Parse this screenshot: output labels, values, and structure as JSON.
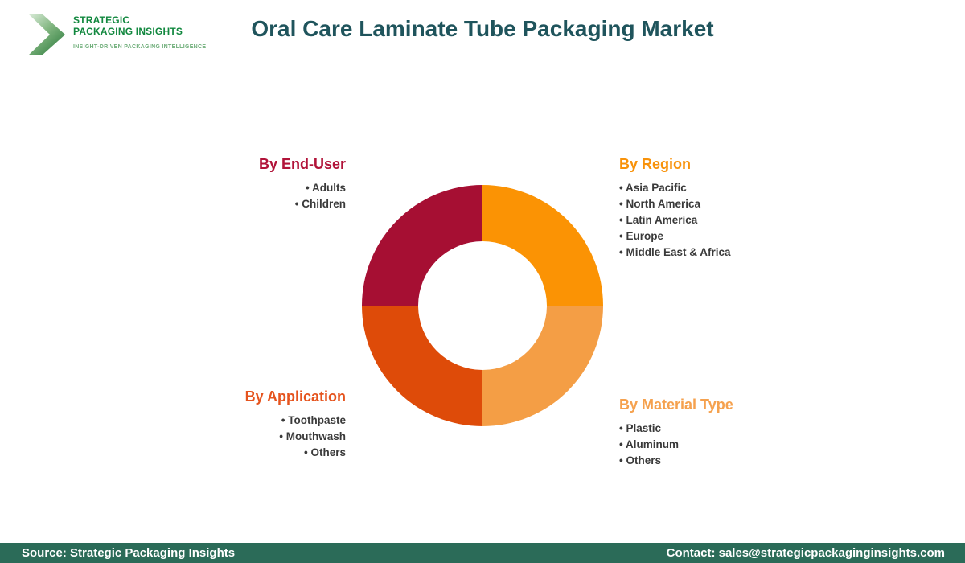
{
  "header": {
    "logo": {
      "line1": "STRATEGIC",
      "line2": "PACKAGING INSIGHTS",
      "tagline": "INSIGHT-DRIVEN PACKAGING INTELLIGENCE"
    },
    "title": "Oral Care Laminate Tube Packaging Market"
  },
  "chart_data": {
    "type": "pie",
    "subtype": "donut",
    "title": "Oral Care Laminate Tube Packaging Market segmentation",
    "legend_position": "around-chart",
    "inner_radius_ratio": 0.53,
    "segments": [
      {
        "name": "By Region",
        "position": "top-right",
        "value": 25,
        "color": "#FB9304"
      },
      {
        "name": "By Material Type",
        "position": "bottom-right",
        "value": 25,
        "color": "#F49E45"
      },
      {
        "name": "By Application",
        "position": "bottom-left",
        "value": 25,
        "color": "#DE4B09"
      },
      {
        "name": "By End-User",
        "position": "top-left",
        "value": 25,
        "color": "#A60F33"
      }
    ]
  },
  "groups": {
    "end_user": {
      "heading": "By End-User",
      "color": "#B11339",
      "items": [
        "Adults",
        "Children"
      ]
    },
    "region": {
      "heading": "By Region",
      "color": "#F8920A",
      "items": [
        "Asia Pacific",
        "North America",
        "Latin America",
        "Europe",
        "Middle East & Africa"
      ]
    },
    "application": {
      "heading": "By Application",
      "color": "#E5541E",
      "items": [
        "Toothpaste",
        "Mouthwash",
        "Others"
      ]
    },
    "material": {
      "heading": "By Material Type",
      "color": "#F5A14E",
      "items": [
        "Plastic",
        "Aluminum",
        "Others"
      ]
    }
  },
  "footer": {
    "source": "Source: Strategic Packaging Insights",
    "contact": "Contact: sales@strategicpackaginginsights.com",
    "bg": "#2B6B58"
  }
}
